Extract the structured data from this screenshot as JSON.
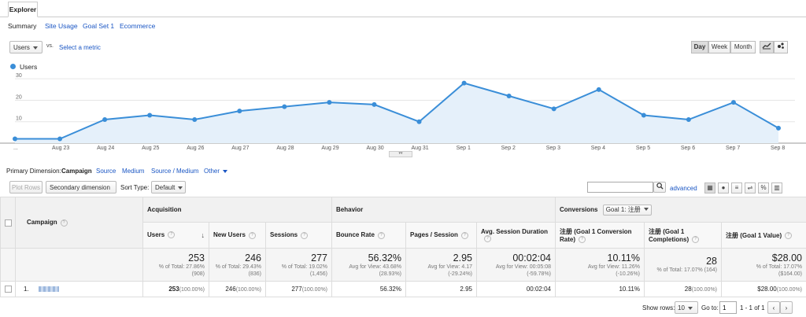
{
  "tabs": {
    "explorer": "Explorer"
  },
  "subtabs": [
    "Summary",
    "Site Usage",
    "Goal Set 1",
    "Ecommerce"
  ],
  "metric_bar": {
    "metric": "Users",
    "vs": "vs.",
    "select_metric": "Select a metric"
  },
  "granularity": {
    "day": "Day",
    "week": "Week",
    "month": "Month"
  },
  "chart_data": {
    "type": "area",
    "legend": "Users",
    "color": "#3a8ed8",
    "x": [
      "...",
      "Aug 23",
      "Aug 24",
      "Aug 25",
      "Aug 26",
      "Aug 27",
      "Aug 28",
      "Aug 29",
      "Aug 30",
      "Aug 31",
      "Sep 1",
      "Sep 2",
      "Sep 3",
      "Sep 4",
      "Sep 5",
      "Sep 6",
      "Sep 7",
      "Sep 8"
    ],
    "values": [
      2,
      2,
      11,
      13,
      11,
      15,
      17,
      19,
      18,
      10,
      28,
      22,
      16,
      25,
      13,
      11,
      19,
      7
    ],
    "yticks": [
      10,
      20,
      30
    ],
    "ylim": [
      0,
      33
    ]
  },
  "dimensions": {
    "label": "Primary Dimension:",
    "active": "Campaign",
    "others": [
      "Source",
      "Medium",
      "Source / Medium"
    ],
    "other": "Other"
  },
  "controls": {
    "plot_rows": "Plot Rows",
    "secondary": "Secondary dimension",
    "sort_type_label": "Sort Type:",
    "sort_type": "Default",
    "advanced": "advanced"
  },
  "table": {
    "groups": {
      "acquisition": "Acquisition",
      "behavior": "Behavior",
      "conversions": "Conversions",
      "goal_select": "Goal 1: 注册"
    },
    "campaign_header": "Campaign",
    "columns": [
      "Users",
      "New Users",
      "Sessions",
      "Bounce Rate",
      "Pages / Session",
      "Avg. Session Duration",
      "注册 (Goal 1 Conversion Rate)",
      "注册 (Goal 1 Completions)",
      "注册 (Goal 1 Value)"
    ],
    "totals": [
      {
        "value": "253",
        "sub": "% of Total: 27.86%",
        "sub2": "(908)"
      },
      {
        "value": "246",
        "sub": "% of Total: 29.43%",
        "sub2": "(836)"
      },
      {
        "value": "277",
        "sub": "% of Total: 19.02%",
        "sub2": "(1,456)"
      },
      {
        "value": "56.32%",
        "sub": "Avg for View: 43.68%",
        "sub2": "(28.93%)"
      },
      {
        "value": "2.95",
        "sub": "Avg for View: 4.17",
        "sub2": "(-29.24%)"
      },
      {
        "value": "00:02:04",
        "sub": "Avg for View: 00:05:08",
        "sub2": "(-59.78%)"
      },
      {
        "value": "10.11%",
        "sub": "Avg for View: 11.26%",
        "sub2": "(-10.26%)"
      },
      {
        "value": "28",
        "sub": "% of Total: 17.07% (164)",
        "sub2": ""
      },
      {
        "value": "$28.00",
        "sub": "% of Total: 17.07%",
        "sub2": "($164.00)"
      }
    ],
    "row": {
      "index": "1.",
      "cells": [
        "253",
        "246",
        "277",
        "56.32%",
        "2.95",
        "00:02:04",
        "10.11%",
        "28",
        "$28.00"
      ],
      "pcts": [
        "(100.00%)",
        "(100.00%)",
        "(100.00%)",
        "",
        "",
        "",
        "",
        "(100.00%)",
        "(100.00%)"
      ]
    }
  },
  "pagination": {
    "show_rows_label": "Show rows:",
    "show_rows": "10",
    "goto_label": "Go to:",
    "goto": "1",
    "range": "1 - 1 of 1"
  }
}
